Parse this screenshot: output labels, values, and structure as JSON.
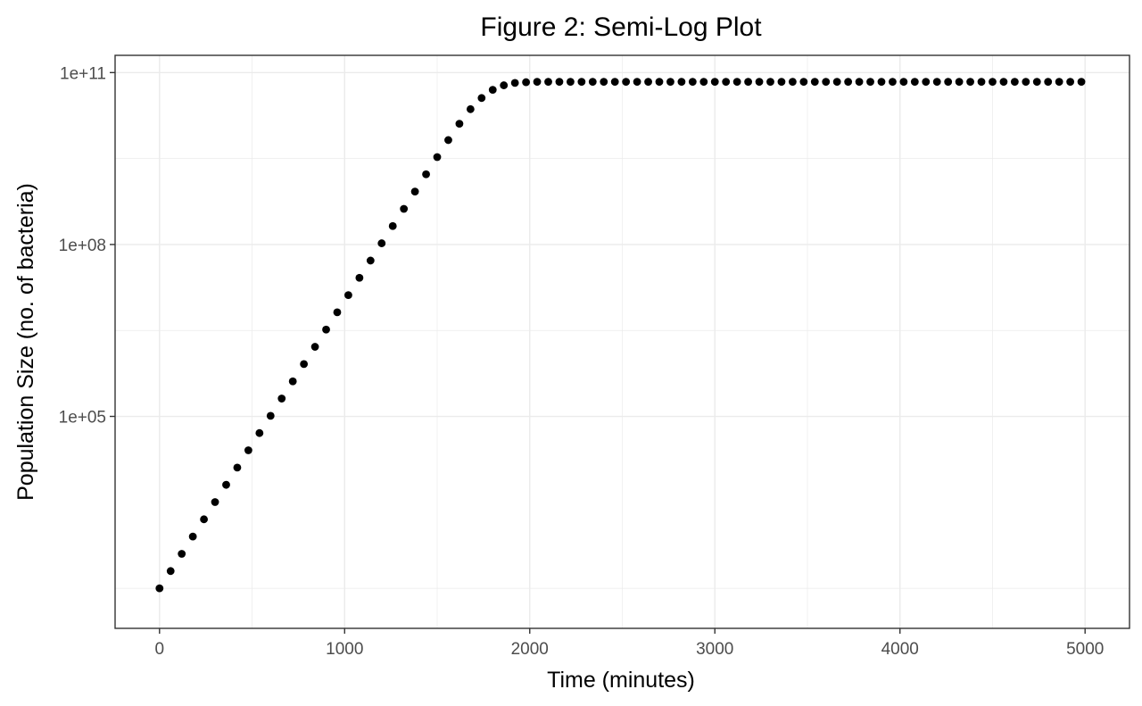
{
  "chart_data": {
    "type": "scatter",
    "title": "Figure 2: Semi-Log Plot",
    "xlabel": "Time (minutes)",
    "ylabel": "Population Size (no. of bacteria)",
    "x_scale": "linear",
    "y_scale": "log10",
    "xlim": [
      -240,
      5240
    ],
    "ylim": [
      20,
      200000000000
    ],
    "x_ticks": [
      {
        "value": 0,
        "label": "0"
      },
      {
        "value": 1000,
        "label": "1000"
      },
      {
        "value": 2000,
        "label": "2000"
      },
      {
        "value": 3000,
        "label": "3000"
      },
      {
        "value": 4000,
        "label": "4000"
      },
      {
        "value": 5000,
        "label": "5000"
      }
    ],
    "y_ticks": [
      {
        "value": 100000,
        "label": "1e+05"
      },
      {
        "value": 100000000,
        "label": "1e+08"
      },
      {
        "value": 100000000000,
        "label": "1e+11"
      }
    ],
    "x_minor_ticks": [
      500,
      1500,
      2500,
      3500,
      4500
    ],
    "y_minor_ticks": [
      100,
      3162278,
      3162277660
    ],
    "grid": true,
    "legend": "none",
    "point_color": "#000000",
    "series": [
      {
        "x": [
          0,
          60,
          120,
          180,
          240,
          300,
          360,
          420,
          480,
          540,
          600,
          660,
          720,
          780,
          840,
          900,
          960,
          1020,
          1080,
          1140,
          1200,
          1260,
          1320,
          1380,
          1440,
          1500,
          1560,
          1620,
          1680,
          1740,
          1800,
          1860,
          1920,
          1980,
          2040,
          2100,
          2160,
          2220,
          2280,
          2340,
          2400,
          2460,
          2520,
          2580,
          2640,
          2700,
          2760,
          2820,
          2880,
          2940,
          3000,
          3060,
          3120,
          3180,
          3240,
          3300,
          3360,
          3420,
          3480,
          3540,
          3600,
          3660,
          3720,
          3780,
          3840,
          3900,
          3960,
          4020,
          4080,
          4140,
          4200,
          4260,
          4320,
          4380,
          4440,
          4500,
          4560,
          4620,
          4680,
          4740,
          4800,
          4860,
          4920,
          4980
        ],
        "y": [
          100,
          200,
          400,
          800,
          1600,
          3200,
          6400,
          12800,
          25600,
          51200,
          102400,
          204800,
          409600,
          819200,
          1638400,
          3276800,
          6553600,
          13100000,
          26200000,
          52400000,
          105000000,
          210000000,
          419000000,
          838000000,
          1680000000,
          3350000000,
          6640000000,
          12800000000,
          23000000000,
          36000000000,
          50000000000,
          60000000000,
          66000000000,
          68000000000,
          69000000000,
          69000000000,
          69000000000,
          69000000000,
          69000000000,
          69000000000,
          69000000000,
          69000000000,
          69000000000,
          69000000000,
          69000000000,
          69000000000,
          69000000000,
          69000000000,
          69000000000,
          69000000000,
          69000000000,
          69000000000,
          69000000000,
          69000000000,
          69000000000,
          69000000000,
          69000000000,
          69000000000,
          69000000000,
          69000000000,
          69000000000,
          69000000000,
          69000000000,
          69000000000,
          69000000000,
          69000000000,
          69000000000,
          69000000000,
          69000000000,
          69000000000,
          69000000000,
          69000000000,
          69000000000,
          69000000000,
          69000000000,
          69000000000,
          69000000000,
          69000000000,
          69000000000,
          69000000000,
          69000000000,
          69000000000,
          69000000000,
          69000000000
        ]
      }
    ]
  }
}
